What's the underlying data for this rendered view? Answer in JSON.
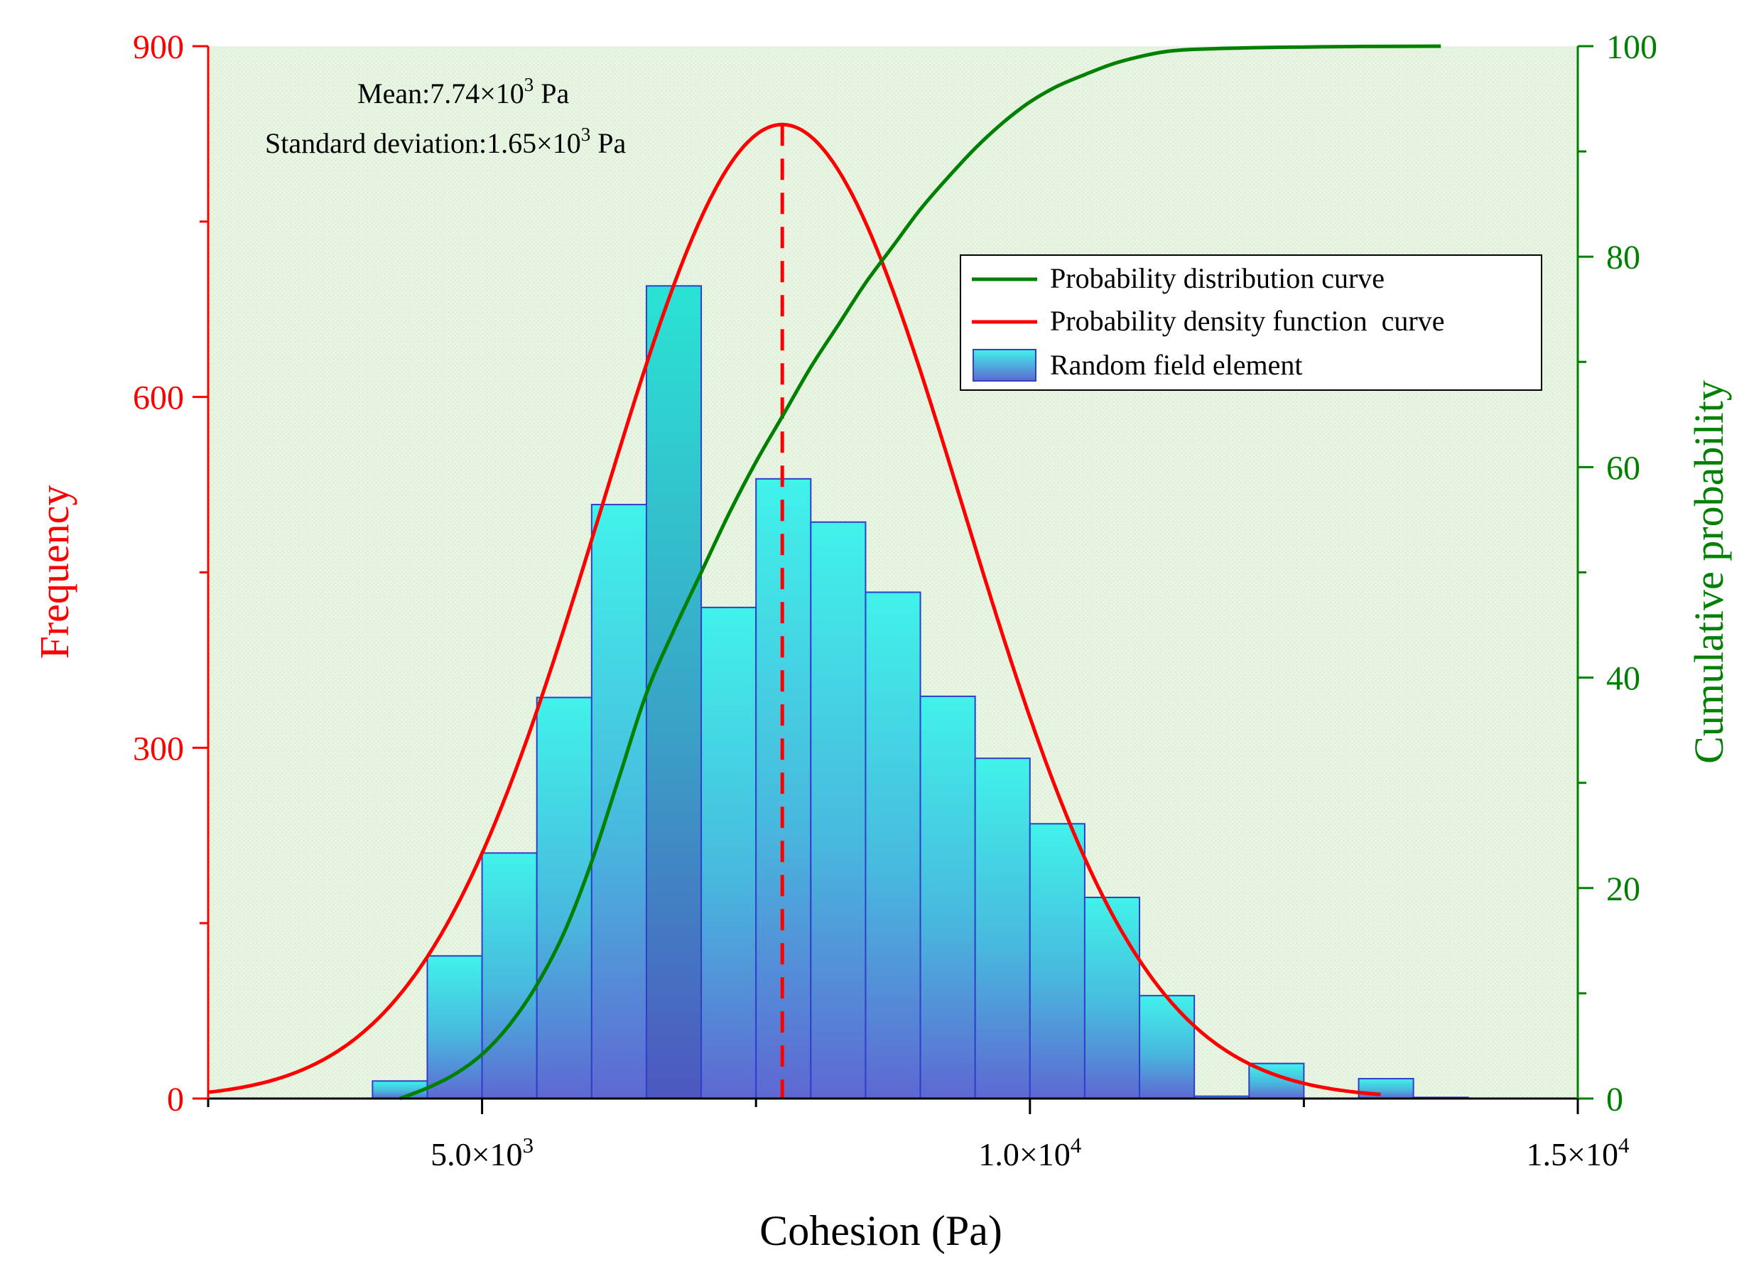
{
  "chart_data": {
    "type": "bar",
    "title": "",
    "xlabel": "Cohesion (Pa)",
    "ylabel_left": "Frequency",
    "ylabel_right": "Cumulative probability",
    "xlim": [
      2500,
      15000
    ],
    "ylim_left": [
      0,
      900
    ],
    "ylim_right": [
      0,
      100
    ],
    "x_ticks": [
      {
        "value": 5000,
        "mantissa": "5.0×10",
        "exp": "3"
      },
      {
        "value": 10000,
        "mantissa": "1.0×10",
        "exp": "4"
      },
      {
        "value": 15000,
        "mantissa": "1.5×10",
        "exp": "4"
      }
    ],
    "y_left_ticks": [
      0,
      300,
      600,
      900
    ],
    "y_right_ticks": [
      0,
      20,
      40,
      60,
      80,
      100
    ],
    "annotations": {
      "mean_label": "Mean:7.74×10",
      "mean_exp": "3",
      "mean_unit": " Pa",
      "sd_label": "Standard deviation:1.65×10",
      "sd_exp": "3",
      "sd_unit": " Pa",
      "mean_value": 7740
    },
    "histogram": {
      "name": "Random field element",
      "bin_width": 500,
      "bins": [
        {
          "start": 4000,
          "count": 15
        },
        {
          "start": 4500,
          "count": 122
        },
        {
          "start": 5000,
          "count": 210
        },
        {
          "start": 5500,
          "count": 343
        },
        {
          "start": 6000,
          "count": 508
        },
        {
          "start": 6500,
          "count": 695
        },
        {
          "start": 7000,
          "count": 420
        },
        {
          "start": 7500,
          "count": 530
        },
        {
          "start": 8000,
          "count": 493
        },
        {
          "start": 8500,
          "count": 433
        },
        {
          "start": 9000,
          "count": 344
        },
        {
          "start": 9500,
          "count": 291
        },
        {
          "start": 10000,
          "count": 235
        },
        {
          "start": 10500,
          "count": 172
        },
        {
          "start": 11000,
          "count": 88
        },
        {
          "start": 11500,
          "count": 2
        },
        {
          "start": 12000,
          "count": 30
        },
        {
          "start": 12500,
          "count": 0
        },
        {
          "start": 13000,
          "count": 17
        },
        {
          "start": 13500,
          "count": 1
        }
      ]
    },
    "series": [
      {
        "name": "Probability distribution curve",
        "color": "#008000",
        "axis": "right",
        "x": [
          4250,
          4500,
          4750,
          5000,
          5250,
          5500,
          5750,
          6000,
          6250,
          6500,
          6750,
          7000,
          7250,
          7500,
          7750,
          8000,
          8250,
          8500,
          8750,
          9000,
          9250,
          9500,
          9750,
          10000,
          10250,
          10500,
          10750,
          11000,
          11250,
          11500,
          12000,
          12500,
          13000,
          13750
        ],
        "y": [
          0,
          1,
          2.3,
          4.2,
          7,
          10.8,
          15.8,
          22.5,
          30.5,
          38.5,
          44.5,
          50,
          55.5,
          60.5,
          65,
          69.5,
          73.5,
          77.5,
          81,
          84.5,
          87.5,
          90.3,
          92.7,
          94.7,
          96.2,
          97.3,
          98.3,
          99,
          99.5,
          99.7,
          99.85,
          99.92,
          99.97,
          100
        ]
      },
      {
        "name": "Probability density function  curve",
        "color": "#ff0000",
        "axis": "left",
        "mean": 7740,
        "sd": 1650,
        "peak": 833,
        "x_range": [
          2500,
          13200
        ]
      }
    ],
    "legend": {
      "position": "top-right",
      "entries": [
        {
          "label": "Probability distribution curve",
          "kind": "line",
          "color": "#008000"
        },
        {
          "label": "Probability density function  curve",
          "kind": "line",
          "color": "#ff0000"
        },
        {
          "label": "Random field element",
          "kind": "patch",
          "color": "#4ad6dc"
        }
      ]
    },
    "colors": {
      "left_axis": "#ff0000",
      "right_axis": "#008000",
      "plot_background": "#e7f4e2",
      "bar_edge": "#2f3fc8",
      "bar_top": "#40f0ea",
      "bar_bottom": "#5a6fd4",
      "bar_highlight_top": "#2fcfc0",
      "bar_highlight_bottom": "#4a58b8",
      "mean_line": "#ff0000"
    }
  }
}
